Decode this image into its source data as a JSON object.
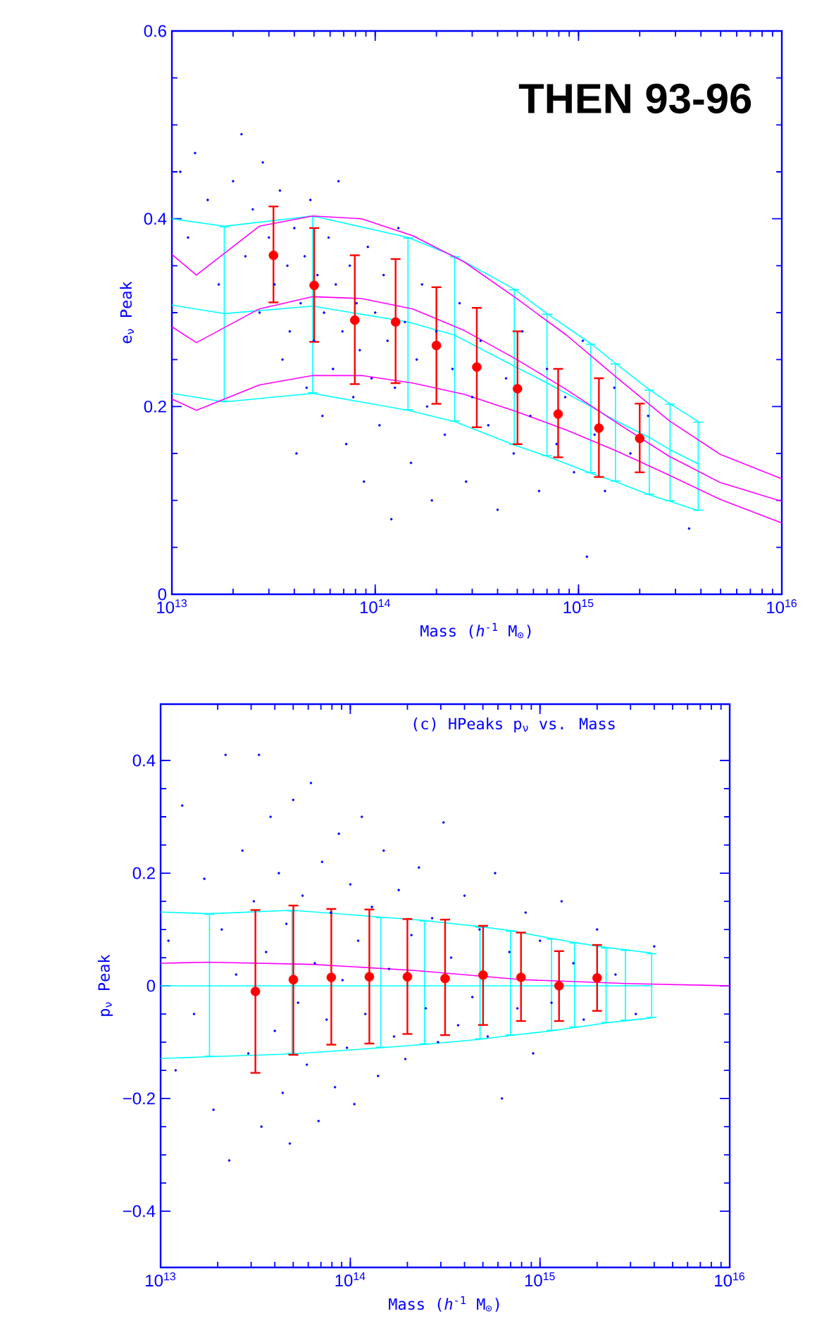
{
  "chart_data": [
    {
      "type": "scatter",
      "title": "THEN 93-96",
      "xlabel": "Mass (*h*$^{-1}$ M$_{⊙}$)",
      "ylabel": "e$_{ν}$ Peak",
      "log": "x",
      "xlim": [
        10000000000000.0,
        1e+16
      ],
      "ylim": [
        0,
        0.6
      ],
      "xticks": [
        {
          "value": 10000000000000.0,
          "label": "10$^{13}$"
        },
        {
          "value": 100000000000000.0,
          "label": "10$^{14}$"
        },
        {
          "value": 1000000000000000.0,
          "label": "10$^{15}$"
        },
        {
          "value": 1e+16,
          "label": "10$^{16}$"
        }
      ],
      "yticks": [
        0,
        0.2,
        0.4,
        0.6
      ],
      "series": [
        {
          "marker": "circle",
          "color": "#0000ff",
          "x": [
            11000000000000.0,
            12000000000000.0,
            13000000000000.0,
            15000000000000.0,
            17000000000000.0,
            20000000000000.0,
            22000000000000.0,
            23000000000000.0,
            25000000000000.0,
            27000000000000.0,
            28000000000000.0,
            30000000000000.0,
            32000000000000.0,
            34000000000000.0,
            35000000000000.0,
            37000000000000.0,
            38000000000000.0,
            40000000000000.0,
            41000000000000.0,
            43000000000000.0,
            45000000000000.0,
            46000000000000.0,
            48000000000000.0,
            50000000000000.0,
            52000000000000.0,
            55000000000000.0,
            56000000000000.0,
            59000000000000.0,
            62000000000000.0,
            64000000000000.0,
            66000000000000.0,
            69000000000000.0,
            72000000000000.0,
            75000000000000.0,
            78000000000000.0,
            81000000000000.0,
            84000000000000.0,
            88000000000000.0,
            92000000000000.0,
            96000000000000.0,
            100000000000000.0,
            105000000000000.0,
            110000000000000.0,
            115000000000000.0,
            120000000000000.0,
            125000000000000.0,
            130000000000000.0,
            140000000000000.0,
            150000000000000.0,
            160000000000000.0,
            170000000000000.0,
            180000000000000.0,
            190000000000000.0,
            200000000000000.0,
            220000000000000.0,
            240000000000000.0,
            260000000000000.0,
            280000000000000.0,
            300000000000000.0,
            330000000000000.0,
            360000000000000.0,
            400000000000000.0,
            440000000000000.0,
            480000000000000.0,
            530000000000000.0,
            580000000000000.0,
            640000000000000.0,
            700000000000000.0,
            780000000000000.0,
            860000000000000.0,
            950000000000000.0,
            1050000000000000.0,
            1200000000000000.0,
            1350000000000000.0,
            1500000000000000.0,
            1800000000000000.0,
            2200000000000000.0,
            3500000000000000.0,
            1100000000000000.0
          ],
          "values": [
            0.45,
            0.38,
            0.47,
            0.42,
            0.33,
            0.44,
            0.49,
            0.36,
            0.41,
            0.3,
            0.46,
            0.38,
            0.33,
            0.43,
            0.25,
            0.35,
            0.28,
            0.39,
            0.15,
            0.31,
            0.36,
            0.22,
            0.42,
            0.27,
            0.34,
            0.19,
            0.3,
            0.38,
            0.24,
            0.33,
            0.44,
            0.28,
            0.16,
            0.35,
            0.21,
            0.31,
            0.26,
            0.12,
            0.37,
            0.23,
            0.3,
            0.18,
            0.34,
            0.27,
            0.08,
            0.22,
            0.39,
            0.29,
            0.14,
            0.25,
            0.33,
            0.2,
            0.1,
            0.28,
            0.17,
            0.24,
            0.31,
            0.12,
            0.21,
            0.27,
            0.18,
            0.09,
            0.23,
            0.15,
            0.28,
            0.19,
            0.11,
            0.24,
            0.16,
            0.21,
            0.13,
            0.27,
            0.17,
            0.11,
            0.22,
            0.15,
            0.19,
            0.07,
            0.04
          ]
        },
        {
          "type": "line",
          "color": "#00ffff",
          "x": [
            10000000000000.0,
            18100000000000.0,
            49300000000000.0,
            145000000000000.0,
            246000000000000.0,
            483000000000000.0,
            700000000000000.0,
            1150000000000000.0,
            1520000000000000.0,
            2230000000000000.0,
            2820000000000000.0,
            3880000000000000.0
          ],
          "values": [
            0.4,
            0.392,
            0.403,
            0.38,
            0.36,
            0.325,
            0.299,
            0.267,
            0.246,
            0.218,
            0.203,
            0.184
          ]
        },
        {
          "type": "line",
          "color": "#00ffff",
          "x": [
            10000000000000.0,
            18100000000000.0,
            49300000000000.0,
            145000000000000.0,
            246000000000000.0,
            483000000000000.0,
            700000000000000.0,
            1150000000000000.0,
            1520000000000000.0,
            2230000000000000.0,
            2820000000000000.0,
            3880000000000000.0
          ],
          "values": [
            0.214,
            0.205,
            0.214,
            0.196,
            0.184,
            0.159,
            0.147,
            0.129,
            0.12,
            0.106,
            0.099,
            0.089
          ]
        },
        {
          "type": "line",
          "color": "#00ffff",
          "x": [
            10000000000000.0,
            18100000000000.0,
            49300000000000.0,
            145000000000000.0,
            246000000000000.0,
            483000000000000.0,
            700000000000000.0,
            1150000000000000.0,
            1520000000000000.0,
            2230000000000000.0,
            2820000000000000.0,
            3880000000000000.0
          ],
          "values": [
            0.308,
            0.299,
            0.307,
            0.29,
            0.276,
            0.243,
            0.225,
            0.2,
            0.185,
            0.167,
            0.154,
            0.139
          ],
          "errors": [
            null,
            [
              0.205,
              0.392
            ],
            [
              0.214,
              0.403
            ],
            [
              0.196,
              0.38
            ],
            [
              0.184,
              0.36
            ],
            [
              0.159,
              0.325
            ],
            [
              0.147,
              0.299
            ],
            [
              0.129,
              0.267
            ],
            [
              0.12,
              0.246
            ],
            [
              0.106,
              0.218
            ],
            [
              0.099,
              0.203
            ],
            [
              0.089,
              0.184
            ]
          ]
        },
        {
          "type": "line",
          "color": "#ff00ff",
          "x": [
            10000000000000.0,
            13200000000000.0,
            26900000000000.0,
            49300000000000.0,
            85700000000000.0,
            153000000000000.0,
            274000000000000.0,
            489000000000000.0,
            873000000000000.0,
            1560000000000000.0,
            2790000000000000.0,
            4980000000000000.0,
            1e+16
          ],
          "values": [
            0.362,
            0.34,
            0.392,
            0.403,
            0.4,
            0.382,
            0.354,
            0.316,
            0.276,
            0.23,
            0.185,
            0.149,
            0.123
          ]
        },
        {
          "type": "line",
          "color": "#ff00ff",
          "x": [
            10000000000000.0,
            13200000000000.0,
            26900000000000.0,
            49300000000000.0,
            85700000000000.0,
            153000000000000.0,
            274000000000000.0,
            489000000000000.0,
            873000000000000.0,
            1560000000000000.0,
            2790000000000000.0,
            4980000000000000.0,
            1e+16
          ],
          "values": [
            0.285,
            0.268,
            0.304,
            0.317,
            0.315,
            0.304,
            0.281,
            0.251,
            0.218,
            0.182,
            0.147,
            0.119,
            0.099
          ]
        },
        {
          "type": "line",
          "color": "#ff00ff",
          "x": [
            10000000000000.0,
            13200000000000.0,
            26900000000000.0,
            49300000000000.0,
            85700000000000.0,
            153000000000000.0,
            274000000000000.0,
            489000000000000.0,
            873000000000000.0,
            1560000000000000.0,
            2790000000000000.0,
            4980000000000000.0,
            1e+16
          ],
          "values": [
            0.208,
            0.196,
            0.223,
            0.233,
            0.233,
            0.225,
            0.213,
            0.195,
            0.175,
            0.152,
            0.127,
            0.101,
            0.076
          ]
        },
        {
          "type": "scatter",
          "marker": "circle",
          "color": "#ff0000",
          "x": [
            31600000000000.0,
            50100000000000.0,
            79400000000000.0,
            126000000000000.0,
            200000000000000.0,
            316000000000000.0,
            501000000000000.0,
            794000000000000.0,
            1260000000000000.0,
            2000000000000000.0
          ],
          "values": [
            0.361,
            0.329,
            0.292,
            0.29,
            0.265,
            0.242,
            0.219,
            0.192,
            0.177,
            0.166
          ],
          "errors": [
            [
              0.31,
              0.414
            ],
            [
              0.268,
              0.391
            ],
            [
              0.223,
              0.362
            ],
            [
              0.224,
              0.358
            ],
            [
              0.202,
              0.328
            ],
            [
              0.177,
              0.306
            ],
            [
              0.159,
              0.281
            ],
            [
              0.145,
              0.241
            ],
            [
              0.124,
              0.231
            ],
            [
              0.129,
              0.204
            ]
          ]
        }
      ]
    },
    {
      "type": "scatter",
      "title": "(c) HPeaks p$_{ν}$ vs. Mass",
      "xlabel": "Mass (*h*$^{-1}$ M$_{⊙}$)",
      "ylabel": "p$_{ν}$ Peak",
      "log": "x",
      "xlim": [
        10000000000000.0,
        1e+16
      ],
      "ylim": [
        -0.5,
        0.5
      ],
      "xticks": [
        {
          "value": 10000000000000.0,
          "label": "10$^{13}$"
        },
        {
          "value": 100000000000000.0,
          "label": "10$^{14}$"
        },
        {
          "value": 1000000000000000.0,
          "label": "10$^{15}$"
        },
        {
          "value": 1e+16,
          "label": "10$^{16}$"
        }
      ],
      "yticks": [
        {
          "value": -0.4,
          "label": "−0.4"
        },
        {
          "value": -0.2,
          "label": "−0.2"
        },
        0,
        0.2,
        0.4
      ],
      "series": [
        {
          "marker": "circle",
          "color": "#0000ff",
          "x": [
            11000000000000.0,
            12000000000000.0,
            13000000000000.0,
            15000000000000.0,
            17000000000000.0,
            19000000000000.0,
            21000000000000.0,
            22000000000000.0,
            23000000000000.0,
            25000000000000.0,
            27000000000000.0,
            29000000000000.0,
            31000000000000.0,
            33000000000000.0,
            34000000000000.0,
            36000000000000.0,
            38000000000000.0,
            40000000000000.0,
            42000000000000.0,
            44000000000000.0,
            46000000000000.0,
            48000000000000.0,
            50000000000000.0,
            53000000000000.0,
            56000000000000.0,
            59000000000000.0,
            62000000000000.0,
            65000000000000.0,
            68000000000000.0,
            71000000000000.0,
            75000000000000.0,
            79000000000000.0,
            83000000000000.0,
            87000000000000.0,
            91000000000000.0,
            96000000000000.0,
            100000000000000.0,
            105000000000000.0,
            110000000000000.0,
            115000000000000.0,
            120000000000000.0,
            130000000000000.0,
            140000000000000.0,
            150000000000000.0,
            160000000000000.0,
            170000000000000.0,
            180000000000000.0,
            195000000000000.0,
            210000000000000.0,
            230000000000000.0,
            250000000000000.0,
            270000000000000.0,
            290000000000000.0,
            310000000000000.0,
            340000000000000.0,
            370000000000000.0,
            400000000000000.0,
            440000000000000.0,
            480000000000000.0,
            530000000000000.0,
            580000000000000.0,
            630000000000000.0,
            690000000000000.0,
            760000000000000.0,
            840000000000000.0,
            920000000000000.0,
            1000000000000000.0,
            1150000000000000.0,
            1300000000000000.0,
            1500000000000000.0,
            1700000000000000.0,
            2000000000000000.0,
            2500000000000000.0,
            3200000000000000.0,
            4000000000000000.0
          ],
          "values": [
            0.08,
            -0.15,
            0.32,
            -0.05,
            0.19,
            -0.22,
            0.1,
            0.41,
            -0.31,
            0.02,
            0.24,
            -0.12,
            0.15,
            0.41,
            -0.25,
            0.06,
            0.3,
            -0.08,
            0.2,
            -0.19,
            0.11,
            -0.28,
            0.33,
            -0.03,
            0.16,
            -0.14,
            0.36,
            0.04,
            -0.24,
            0.22,
            -0.06,
            0.13,
            -0.18,
            0.27,
            0.01,
            -0.11,
            0.18,
            -0.21,
            0.08,
            0.3,
            -0.05,
            0.14,
            -0.16,
            0.24,
            0.03,
            -0.09,
            0.17,
            -0.13,
            0.09,
            0.21,
            -0.04,
            0.12,
            -0.1,
            0.29,
            0.05,
            -0.07,
            0.16,
            -0.02,
            0.1,
            -0.09,
            0.2,
            -0.2,
            0.06,
            -0.04,
            0.13,
            -0.12,
            0.08,
            -0.03,
            0.15,
            0.04,
            -0.06,
            0.1,
            0.02,
            -0.05,
            0.07
          ]
        },
        {
          "type": "line",
          "color": "#00ffff",
          "x": [
            10000000000000.0,
            18100000000000.0,
            49300000000000.0,
            145000000000000.0,
            246000000000000.0,
            483000000000000.0,
            700000000000000.0,
            1150000000000000.0,
            1520000000000000.0,
            2230000000000000.0,
            2820000000000000.0,
            3880000000000000.0
          ],
          "values": [
            0.131,
            0.128,
            0.134,
            0.122,
            0.116,
            0.105,
            0.098,
            0.084,
            0.077,
            0.068,
            0.064,
            0.058
          ]
        },
        {
          "type": "line",
          "color": "#00ffff",
          "x": [
            10000000000000.0,
            18100000000000.0,
            49300000000000.0,
            145000000000000.0,
            246000000000000.0,
            483000000000000.0,
            700000000000000.0,
            1150000000000000.0,
            1520000000000000.0,
            2230000000000000.0,
            2820000000000000.0,
            3880000000000000.0
          ],
          "values": [
            -0.129,
            -0.126,
            -0.121,
            -0.11,
            -0.104,
            -0.095,
            -0.088,
            -0.08,
            -0.074,
            -0.066,
            -0.062,
            -0.057
          ]
        },
        {
          "type": "line",
          "color": "#00ffff",
          "x": [
            10000000000000.0,
            18100000000000.0,
            49300000000000.0,
            145000000000000.0,
            246000000000000.0,
            483000000000000.0,
            700000000000000.0,
            1150000000000000.0,
            1520000000000000.0,
            2230000000000000.0,
            2820000000000000.0,
            3880000000000000.0
          ],
          "values": [
            0,
            0,
            0,
            0,
            0,
            0,
            0,
            0,
            0,
            0,
            0,
            0
          ],
          "errors": [
            null,
            [
              -0.126,
              0.128
            ],
            [
              -0.121,
              0.134
            ],
            [
              -0.11,
              0.122
            ],
            [
              -0.104,
              0.116
            ],
            [
              -0.095,
              0.105
            ],
            [
              -0.088,
              0.098
            ],
            [
              -0.08,
              0.084
            ],
            [
              -0.074,
              0.077
            ],
            [
              -0.066,
              0.068
            ],
            [
              -0.062,
              0.064
            ],
            [
              -0.057,
              0.058
            ]
          ]
        },
        {
          "type": "line",
          "color": "#ff00ff",
          "x": [
            10000000000000.0,
            17900000000000.0,
            63400000000000.0,
            225000000000000.0,
            796000000000000.0,
            2820000000000000.0,
            1e+16
          ],
          "values": [
            0.04,
            0.042,
            0.038,
            0.027,
            0.011,
            0.004,
            0.0
          ]
        },
        {
          "type": "scatter",
          "marker": "circle",
          "color": "#ff0000",
          "x": [
            31600000000000.0,
            50100000000000.0,
            79400000000000.0,
            126000000000000.0,
            200000000000000.0,
            316000000000000.0,
            501000000000000.0,
            794000000000000.0,
            1260000000000000.0,
            2000000000000000.0
          ],
          "values": [
            -0.01,
            0.011,
            0.015,
            0.016,
            0.016,
            0.013,
            0.019,
            0.015,
            0.0,
            0.014
          ],
          "errors": [
            [
              -0.156,
              0.136
            ],
            [
              -0.124,
              0.144
            ],
            [
              -0.106,
              0.138
            ],
            [
              -0.104,
              0.137
            ],
            [
              -0.087,
              0.12
            ],
            [
              -0.089,
              0.119
            ],
            [
              -0.071,
              0.108
            ],
            [
              -0.064,
              0.096
            ],
            [
              -0.064,
              0.063
            ],
            [
              -0.046,
              0.074
            ]
          ]
        }
      ]
    }
  ]
}
